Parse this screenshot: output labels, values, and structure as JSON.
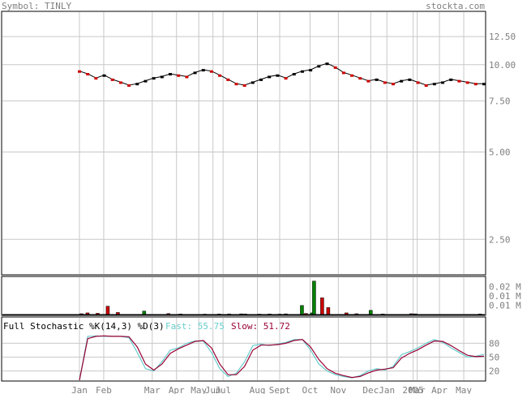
{
  "header": {
    "symbol_label": "Symbol: TINLY",
    "site": "stockta.com"
  },
  "colors": {
    "text": "#7f7f7f",
    "grid": "#c8c8c8",
    "frame": "#000000",
    "up_volume": "#008000",
    "down_volume": "#cc0000",
    "fast_line": "#66cccc",
    "slow_line": "#990033"
  },
  "chart_data": [
    {
      "type": "line",
      "panel": "price",
      "scale": "log",
      "ylim": [
        2.0,
        14.5
      ],
      "yticks": [
        "12.50",
        "10.00",
        "7.50",
        "5.00",
        "2.50"
      ],
      "ytick_values": [
        12.5,
        10.0,
        7.5,
        5.0,
        2.5
      ],
      "x_labels": [
        "Jan",
        "Feb",
        "Mar",
        "Apr",
        "May",
        "Jun",
        "Jul",
        "Aug",
        "Sept",
        "Oct",
        "Nov",
        "Dec",
        "Jan",
        "2005",
        "Mar",
        "Apr",
        "May"
      ],
      "x_label_pos": [
        0.0,
        0.06,
        0.18,
        0.24,
        0.295,
        0.33,
        0.355,
        0.44,
        0.495,
        0.57,
        0.64,
        0.72,
        0.76,
        0.825,
        0.835,
        0.89,
        0.95
      ],
      "price": [
        9.5,
        9.3,
        9.0,
        9.2,
        8.9,
        8.7,
        8.5,
        8.6,
        8.8,
        9.0,
        9.1,
        9.3,
        9.2,
        9.1,
        9.4,
        9.6,
        9.5,
        9.2,
        8.9,
        8.6,
        8.5,
        8.7,
        8.9,
        9.1,
        9.2,
        9.0,
        9.3,
        9.5,
        9.6,
        9.9,
        10.1,
        9.8,
        9.4,
        9.2,
        9.0,
        8.8,
        8.9,
        8.7,
        8.6,
        8.8,
        8.9,
        8.7,
        8.5,
        8.6,
        8.7,
        8.9,
        8.8,
        8.7,
        8.6,
        8.6
      ]
    },
    {
      "type": "bar",
      "panel": "volume",
      "yticks": [
        "0.02 M",
        "0.01 M",
        "0.01 M"
      ],
      "ytick_values": [
        0.02,
        0.0133,
        0.0067
      ],
      "ylim": [
        0,
        0.025
      ],
      "x_pos": [
        0.005,
        0.02,
        0.045,
        0.07,
        0.095,
        0.16,
        0.22,
        0.25,
        0.31,
        0.345,
        0.37,
        0.4,
        0.41,
        0.445,
        0.47,
        0.495,
        0.51,
        0.55,
        0.56,
        0.575,
        0.58,
        0.6,
        0.615,
        0.66,
        0.685,
        0.72,
        0.75,
        0.82,
        0.83,
        0.99
      ],
      "values": [
        0.0006,
        0.0012,
        0.0009,
        0.006,
        0.0015,
        0.0025,
        0.0007,
        0.0004,
        0.0003,
        0.0004,
        0.0004,
        0.0005,
        0.0004,
        0.0003,
        0.0004,
        0.0003,
        0.0005,
        0.0065,
        0.0008,
        0.0012,
        0.024,
        0.012,
        0.005,
        0.0012,
        0.0006,
        0.003,
        0.0004,
        0.0006,
        0.0005,
        0.0004
      ],
      "up": [
        false,
        false,
        false,
        false,
        false,
        true,
        false,
        false,
        false,
        false,
        false,
        false,
        false,
        false,
        false,
        false,
        false,
        true,
        false,
        true,
        true,
        false,
        false,
        false,
        false,
        true,
        false,
        false,
        false,
        false
      ]
    },
    {
      "type": "line",
      "panel": "stochastic",
      "title": "Full Stochastic %K(14,3) %D(3)",
      "fast_label": "Fast: 55.75",
      "slow_label": "Slow: 51.72",
      "ylim": [
        0,
        100
      ],
      "yticks": [
        "80",
        "50",
        "20"
      ],
      "ytick_values": [
        80,
        50,
        20
      ],
      "fast": [
        0,
        95,
        96,
        95,
        95,
        95,
        92,
        60,
        25,
        20,
        40,
        65,
        70,
        80,
        85,
        85,
        60,
        25,
        8,
        15,
        40,
        75,
        78,
        75,
        78,
        82,
        88,
        88,
        65,
        35,
        20,
        12,
        8,
        5,
        10,
        20,
        25,
        22,
        30,
        55,
        62,
        70,
        80,
        88,
        82,
        70,
        60,
        50,
        52,
        56
      ],
      "slow": [
        0,
        90,
        95,
        96,
        95,
        95,
        94,
        72,
        35,
        22,
        35,
        58,
        68,
        76,
        84,
        86,
        70,
        35,
        12,
        12,
        30,
        65,
        76,
        76,
        77,
        80,
        86,
        88,
        72,
        45,
        25,
        15,
        10,
        6,
        8,
        16,
        22,
        24,
        27,
        48,
        58,
        66,
        76,
        85,
        84,
        75,
        64,
        54,
        51,
        52
      ]
    }
  ]
}
